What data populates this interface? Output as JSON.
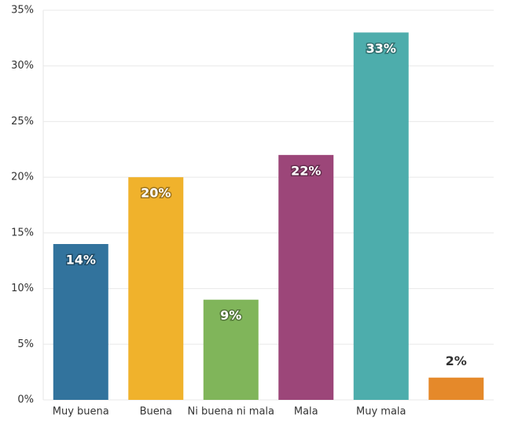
{
  "chart_data": {
    "type": "bar",
    "categories": [
      "Muy buena",
      "Buena",
      "Ni buena ni mala",
      "Mala",
      "Muy mala",
      null
    ],
    "values": [
      14,
      20,
      9,
      22,
      33,
      2
    ],
    "value_labels": [
      "14%",
      "20%",
      "9%",
      "22%",
      "33%",
      "2%"
    ],
    "colors": [
      "#32739d",
      "#f0b22c",
      "#80b55a",
      "#9c4679",
      "#4dadac",
      "#e5892a"
    ],
    "ylim": [
      0,
      35
    ],
    "yticks": [
      {
        "value": 0,
        "label": "0%"
      },
      {
        "value": 5,
        "label": "5%"
      },
      {
        "value": 10,
        "label": "10%"
      },
      {
        "value": 15,
        "label": "15%"
      },
      {
        "value": 20,
        "label": "20%"
      },
      {
        "value": 25,
        "label": "25%"
      },
      {
        "value": 30,
        "label": "30%"
      },
      {
        "value": 35,
        "label": "35%"
      }
    ],
    "grid": true
  }
}
